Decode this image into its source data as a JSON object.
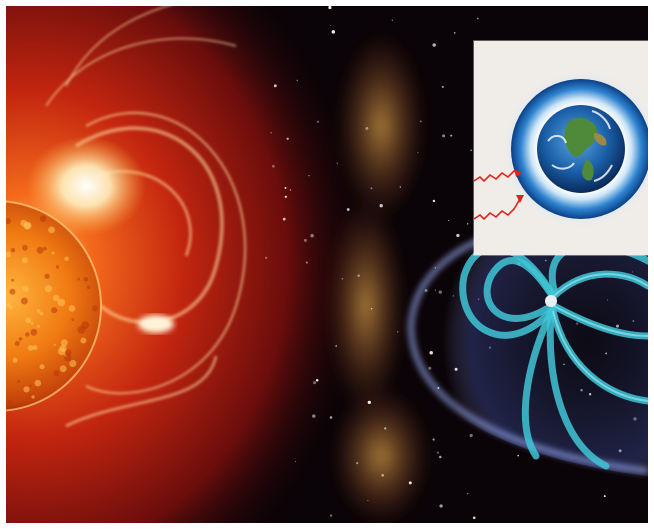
{
  "scene": {
    "elements": {
      "sun": "sun-disk",
      "cme": "coronal-mass-ejection",
      "magnetosphere": "earth-magnetosphere",
      "inset": "earth-atmosphere-inset"
    }
  },
  "colors": {
    "space": "#0a0307",
    "cme_red": "#b3200f",
    "sun_orange": "#f07a12",
    "field_cyan": "#3fc6d6",
    "bow_shock": "#8fa6ff",
    "inset_bg": "#f0ede9",
    "atmosphere_blue": "#1e6fc2",
    "arrow_red": "#e0241a"
  }
}
